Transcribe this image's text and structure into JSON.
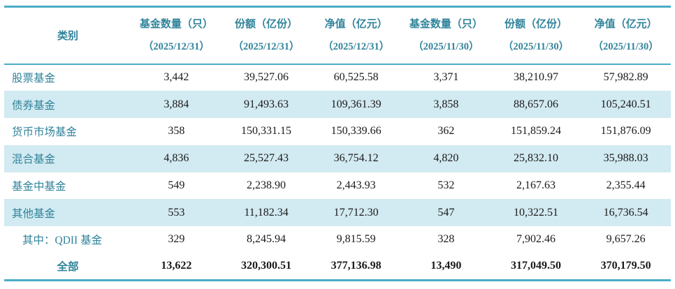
{
  "table": {
    "category_header": "类别",
    "columns": [
      {
        "title": "基金数量（只）",
        "date": "（2025/12/31）"
      },
      {
        "title": "份额（亿份）",
        "date": "（2025/12/31）"
      },
      {
        "title": "净值（亿元）",
        "date": "（2025/12/31）"
      },
      {
        "title": "基金数量（只）",
        "date": "（2025/11/30）"
      },
      {
        "title": "份额（亿份）",
        "date": "（2025/11/30）"
      },
      {
        "title": "净值（亿元）",
        "date": "（2025/11/30）"
      }
    ],
    "rows": [
      {
        "label": "股票基金",
        "values": [
          "3,442",
          "39,527.06",
          "60,525.58",
          "3,371",
          "38,210.97",
          "57,982.89"
        ]
      },
      {
        "label": "债券基金",
        "values": [
          "3,884",
          "91,493.63",
          "109,361.39",
          "3,858",
          "88,657.06",
          "105,240.51"
        ]
      },
      {
        "label": "货币市场基金",
        "values": [
          "358",
          "150,331.15",
          "150,339.66",
          "362",
          "151,859.24",
          "151,876.09"
        ]
      },
      {
        "label": "混合基金",
        "values": [
          "4,836",
          "25,527.43",
          "36,754.12",
          "4,820",
          "25,832.10",
          "35,988.03"
        ]
      },
      {
        "label": "基金中基金",
        "values": [
          "549",
          "2,238.90",
          "2,443.93",
          "532",
          "2,167.63",
          "2,355.44"
        ]
      },
      {
        "label": "其他基金",
        "values": [
          "553",
          "11,182.34",
          "17,712.30",
          "547",
          "10,322.51",
          "16,736.54"
        ]
      },
      {
        "label": "其中：QDII 基金",
        "indent": true,
        "values": [
          "329",
          "8,245.94",
          "9,815.59",
          "328",
          "7,902.46",
          "9,657.26"
        ]
      },
      {
        "label": "全部",
        "align": "center",
        "bold": true,
        "values": [
          "13,622",
          "320,300.51",
          "377,136.98",
          "13,490",
          "317,049.50",
          "370,179.50"
        ]
      }
    ],
    "colors": {
      "accent_text": "#31849B",
      "border": "#4BACC6",
      "stripe": "#D2EAF1",
      "value_text": "#1A1A1A"
    }
  }
}
